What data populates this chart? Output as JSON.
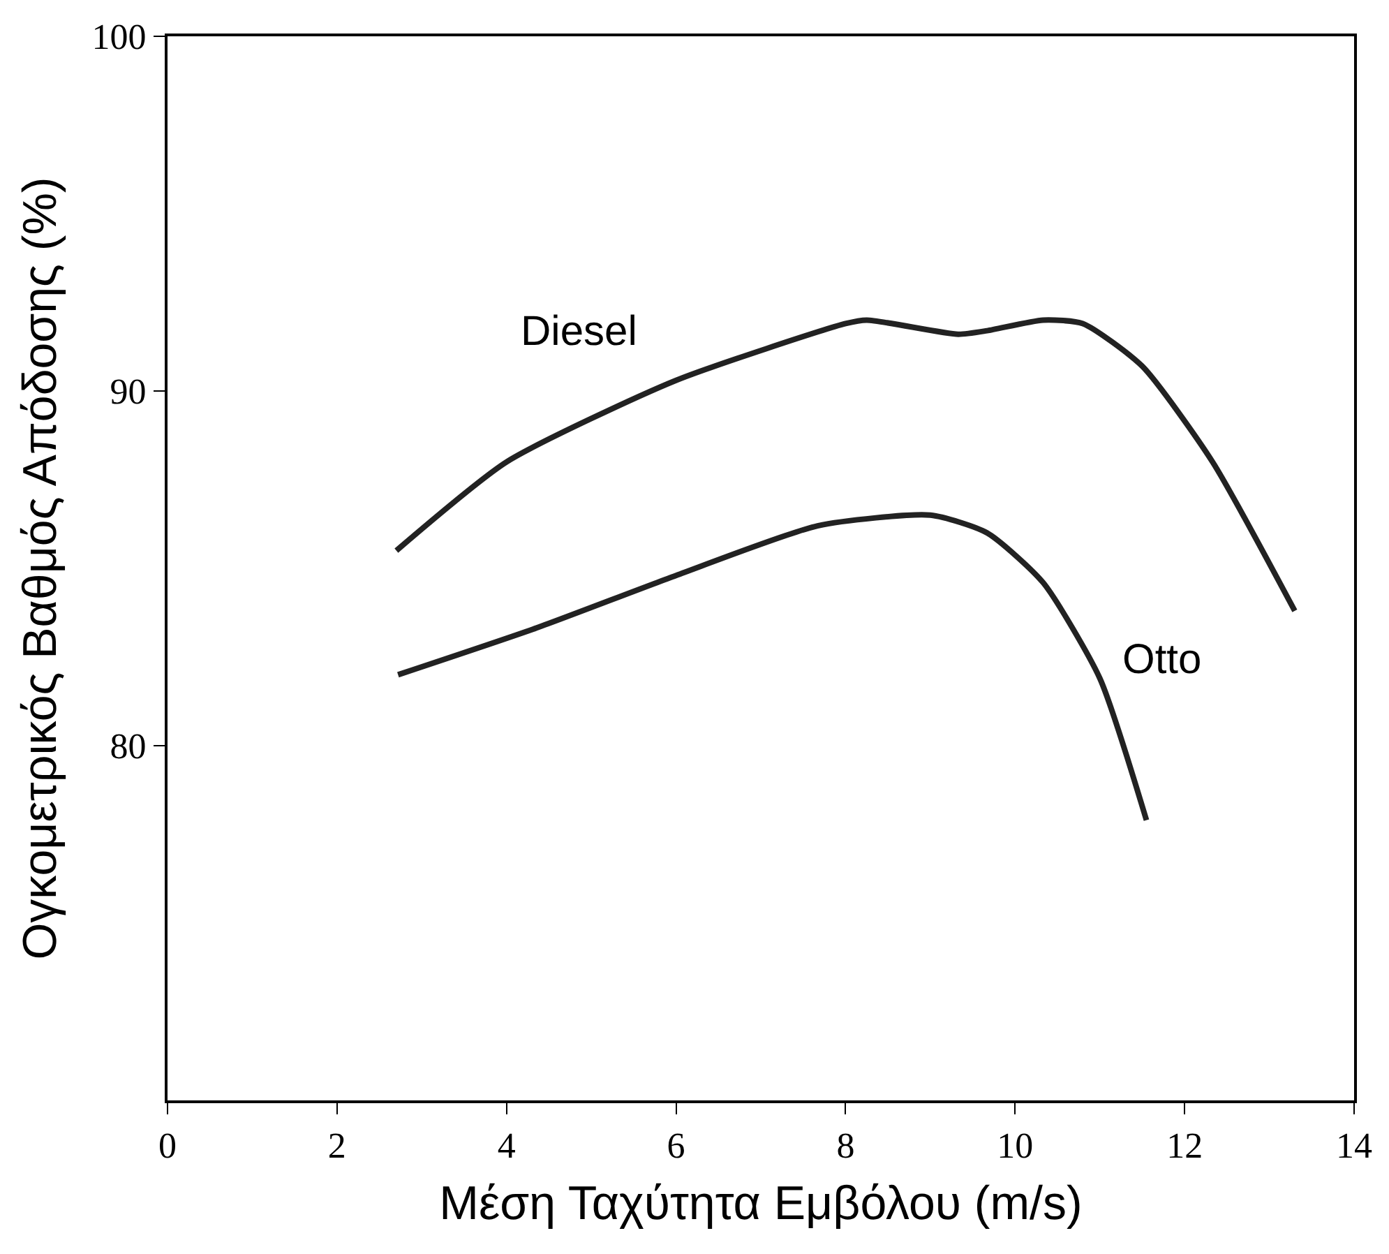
{
  "chart_data": {
    "type": "line",
    "xlabel": "Μέση Ταχύτητα Εμβόλου (m/s)",
    "ylabel": "Ογκομετρικός Βαθμός Απόδοσης (%)",
    "xlim": [
      0,
      14
    ],
    "xticks": [
      0,
      2,
      4,
      6,
      8,
      10,
      12,
      14
    ],
    "ylim": [
      70,
      100
    ],
    "yticks": [
      80,
      90,
      100
    ],
    "legend": false,
    "marker": "none",
    "line_style": "solid",
    "series": [
      {
        "name": "Diesel",
        "color": "#222222",
        "x": [
          2.7,
          4.0,
          6.0,
          8.0,
          8.25,
          9.33,
          9.67,
          10.33,
          10.8,
          11.5,
          12.33,
          13.3
        ],
        "values": [
          85.5,
          88.0,
          90.3,
          91.9,
          92.0,
          91.6,
          91.7,
          92.0,
          91.9,
          90.7,
          88.0,
          83.8
        ]
      },
      {
        "name": "Otto",
        "color": "#222222",
        "x": [
          2.72,
          4.33,
          6.0,
          7.67,
          9.0,
          9.67,
          10.33,
          11.0,
          11.55
        ],
        "values": [
          82.0,
          83.3,
          84.8,
          86.2,
          86.5,
          86.0,
          84.6,
          81.9,
          77.9
        ]
      }
    ]
  }
}
